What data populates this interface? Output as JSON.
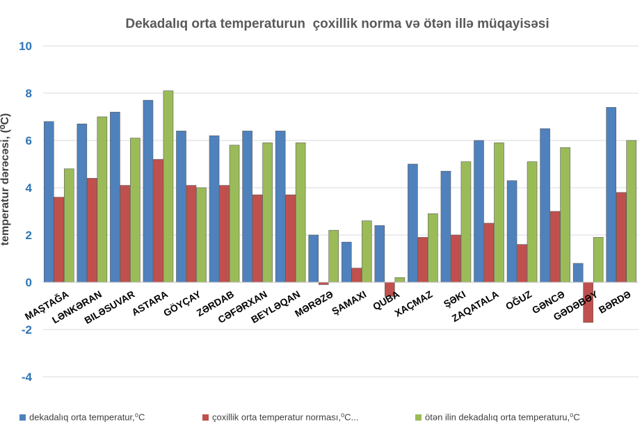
{
  "chart_data": {
    "type": "bar",
    "title": "Dekadalıq orta temperaturun  çoxillik norma və ötən illə müqayisəsi",
    "xlabel": "",
    "ylabel": "temperatur dərəcəsi, (⁰C)",
    "ylim": [
      -4,
      10
    ],
    "yticks": [
      -4,
      -2,
      0,
      2,
      4,
      6,
      8,
      10
    ],
    "grid": true,
    "legend_position": "bottom",
    "categories": [
      "MAŞTAĞA",
      "LƏNKƏRAN",
      "BILƏSUVAR",
      "ASTARA",
      "GÖYÇAY",
      "ZƏRDAB",
      "CƏFƏRXAN",
      "BEYLƏQAN",
      "MƏRƏZƏ",
      "ŞAMAXI",
      "QUBA",
      "XAÇMAZ",
      "ŞƏKI",
      "ZAQATALA",
      "OĞUZ",
      "GƏNCƏ",
      "GƏDƏBƏY",
      "BƏRDƏ"
    ],
    "series": [
      {
        "name": "dekadalıq orta temperatur,⁰C",
        "color": "#4f81bd",
        "values": [
          6.8,
          6.7,
          7.2,
          7.7,
          6.4,
          6.2,
          6.4,
          6.4,
          2.0,
          1.7,
          2.4,
          5.0,
          4.7,
          6.0,
          4.3,
          6.5,
          0.8,
          7.4
        ]
      },
      {
        "name": "çoxillik orta temperatur norması,⁰C...",
        "color": "#c0504d",
        "values": [
          3.6,
          4.4,
          4.1,
          5.2,
          4.1,
          4.1,
          3.7,
          3.7,
          -0.1,
          0.6,
          -0.6,
          1.9,
          2.0,
          2.5,
          1.6,
          3.0,
          -1.7,
          3.8
        ]
      },
      {
        "name": "ötən ilin dekadalıq orta temperaturu,⁰C",
        "color": "#9bbb59",
        "values": [
          4.8,
          7.0,
          6.1,
          8.1,
          4.0,
          5.8,
          5.9,
          5.9,
          2.2,
          2.6,
          0.2,
          2.9,
          5.1,
          5.9,
          5.1,
          5.7,
          1.9,
          6.0
        ]
      }
    ]
  },
  "colors": {
    "title": "#595959",
    "axis_tick_labels": "#2e75b6",
    "category_labels": "#000000",
    "gridline": "#d9d9d9"
  }
}
